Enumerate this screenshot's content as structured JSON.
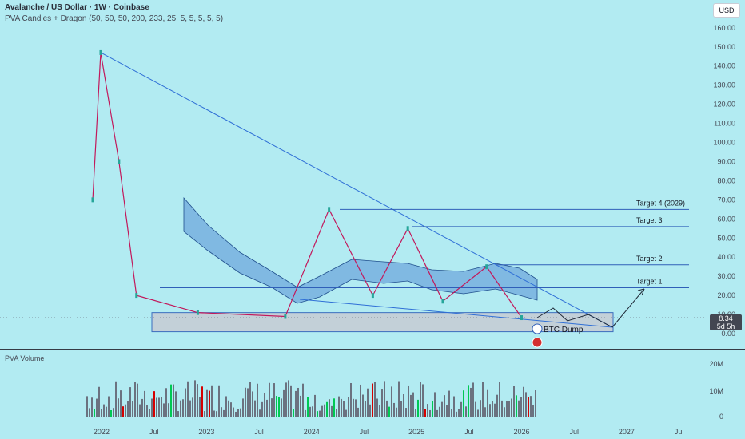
{
  "header": {
    "title": "Avalanche / US Dollar · 1W · Coinbase",
    "indicators": "PVA Candles + Dragon (50, 50, 50, 200, 233, 25, 5, 5, 5, 5, 5)"
  },
  "currency_button": "USD",
  "volume_pane_label": "PVA Volume",
  "last_price": {
    "value": "8.34",
    "countdown": "5d 5h"
  },
  "chart_data": {
    "type": "candlestick",
    "price_axis": {
      "ticks": [
        "160.00",
        "150.00",
        "140.00",
        "130.00",
        "120.00",
        "110.00",
        "100.00",
        "90.00",
        "80.00",
        "70.00",
        "60.00",
        "50.00",
        "40.00",
        "30.00",
        "20.00",
        "10.00",
        "0.00"
      ]
    },
    "volume_axis": {
      "ticks": [
        "20M",
        "10M",
        "0"
      ]
    },
    "time_axis": {
      "ticks": [
        "2022",
        "Jul",
        "2023",
        "Jul",
        "2024",
        "Jul",
        "2025",
        "Jul",
        "2026",
        "Jul",
        "2027",
        "Jul"
      ]
    },
    "ohlc_keypoints": [
      {
        "date": "2021-12",
        "close": 70
      },
      {
        "date": "2021-12",
        "close": 147
      },
      {
        "date": "2022-03",
        "close": 90
      },
      {
        "date": "2022-05",
        "close": 20
      },
      {
        "date": "2022-12",
        "close": 11
      },
      {
        "date": "2023-10",
        "close": 9
      },
      {
        "date": "2024-03",
        "close": 65
      },
      {
        "date": "2024-08",
        "close": 20
      },
      {
        "date": "2024-12",
        "close": 55
      },
      {
        "date": "2025-04",
        "close": 17
      },
      {
        "date": "2025-09",
        "close": 35
      },
      {
        "date": "2026-01",
        "close": 8.34
      }
    ],
    "annotations": {
      "targets": [
        {
          "label": "Target 1",
          "price": 24
        },
        {
          "label": "Target 2",
          "price": 36
        },
        {
          "label": "Target 3",
          "price": 56
        },
        {
          "label": "Target 4 (2029)",
          "price": 65
        }
      ],
      "event_label": "BTC Dump",
      "support_zone": {
        "low": 1,
        "high": 11
      }
    }
  }
}
